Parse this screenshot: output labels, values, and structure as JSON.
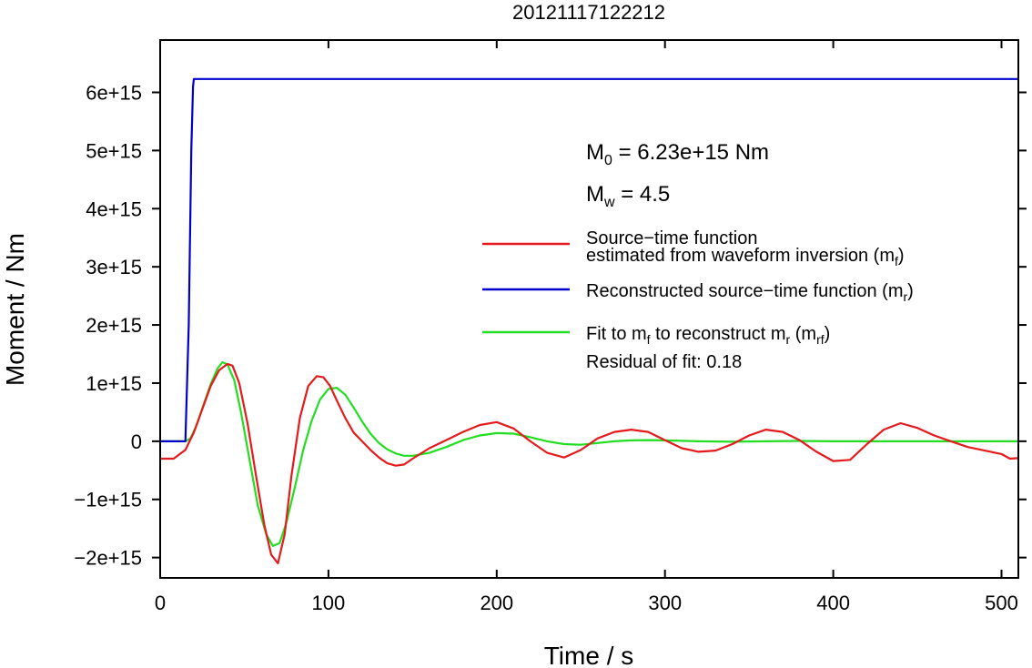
{
  "chart_data": {
    "type": "line",
    "title": "20121117122212",
    "xlabel": "Time / s",
    "ylabel": "Moment / Nm",
    "xlim": [
      0,
      510
    ],
    "ylim": [
      -2350000000000000.0,
      6900000000000000.0
    ],
    "x_ticks": [
      0,
      100,
      200,
      300,
      400,
      500
    ],
    "x_tick_labels": [
      "0",
      "100",
      "200",
      "300",
      "400",
      "500"
    ],
    "y_ticks": [
      -2000000000000000.0,
      -1000000000000000.0,
      0,
      1000000000000000.0,
      2000000000000000.0,
      3000000000000000.0,
      4000000000000000.0,
      5000000000000000.0,
      6000000000000000.0
    ],
    "y_tick_labels": [
      "−2e+15",
      "−1e+15",
      "0",
      "1e+15",
      "2e+15",
      "3e+15",
      "4e+15",
      "5e+15",
      "6e+15"
    ],
    "grid": false,
    "legend_position": "right",
    "annotations": {
      "m0": {
        "sym": "M",
        "sub": "0",
        "rest": " = 6.23e+15 Nm"
      },
      "mw": {
        "sym": "M",
        "sub": "w",
        "rest": " = 4.5"
      },
      "residual": "Residual of fit: 0.18"
    },
    "series": [
      {
        "key": "red",
        "color": "#e41a1c",
        "legend": [
          {
            "segments": [
              {
                "t": "Source−time function"
              }
            ]
          },
          {
            "segments": [
              {
                "t": "estimated from waveform inversion (m"
              },
              {
                "t": "f",
                "sub": true
              },
              {
                "t": ")"
              }
            ]
          }
        ],
        "x": [
          0,
          8,
          15,
          20,
          25,
          30,
          35,
          40,
          43,
          47,
          52,
          57,
          62,
          66,
          70,
          74,
          78,
          83,
          88,
          93,
          97,
          101,
          105,
          110,
          115,
          120,
          125,
          130,
          135,
          140,
          145,
          150,
          160,
          170,
          180,
          190,
          200,
          210,
          220,
          230,
          240,
          250,
          260,
          270,
          280,
          290,
          300,
          310,
          320,
          330,
          340,
          350,
          360,
          370,
          380,
          390,
          400,
          410,
          420,
          430,
          440,
          450,
          460,
          470,
          480,
          490,
          500,
          505,
          510
        ],
        "y": [
          -300000000000000.0,
          -300000000000000.0,
          -150000000000000.0,
          150000000000000.0,
          550000000000000.0,
          950000000000000.0,
          1220000000000000.0,
          1330000000000000.0,
          1300000000000000.0,
          1000000000000000.0,
          300000000000000.0,
          -600000000000000.0,
          -1450000000000000.0,
          -1950000000000000.0,
          -2100000000000000.0,
          -1600000000000000.0,
          -600000000000000.0,
          400000000000000.0,
          950000000000000.0,
          1120000000000000.0,
          1100000000000000.0,
          950000000000000.0,
          700000000000000.0,
          400000000000000.0,
          150000000000000.0,
          0.0,
          -150000000000000.0,
          -280000000000000.0,
          -380000000000000.0,
          -420000000000000.0,
          -400000000000000.0,
          -300000000000000.0,
          -120000000000000.0,
          20000000000000.0,
          160000000000000.0,
          280000000000000.0,
          330000000000000.0,
          220000000000000.0,
          0.0,
          -200000000000000.0,
          -280000000000000.0,
          -150000000000000.0,
          50000000000000.0,
          160000000000000.0,
          200000000000000.0,
          160000000000000.0,
          20000000000000.0,
          -120000000000000.0,
          -180000000000000.0,
          -160000000000000.0,
          -50000000000000.0,
          100000000000000.0,
          200000000000000.0,
          160000000000000.0,
          20000000000000.0,
          -180000000000000.0,
          -340000000000000.0,
          -320000000000000.0,
          -50000000000000.0,
          200000000000000.0,
          310000000000000.0,
          230000000000000.0,
          100000000000000.0,
          0.0,
          -100000000000000.0,
          -160000000000000.0,
          -220000000000000.0,
          -300000000000000.0,
          -290000000000000.0
        ]
      },
      {
        "key": "blue",
        "color": "#0000cc",
        "legend": [
          {
            "segments": [
              {
                "t": "Reconstructed source−time function (m"
              },
              {
                "t": "r",
                "sub": true
              },
              {
                "t": ")"
              }
            ]
          }
        ],
        "x": [
          0,
          15,
          17,
          18.5,
          19.5,
          20,
          510
        ],
        "y": [
          0,
          0,
          2000000000000000.0,
          5000000000000000.0,
          6100000000000000.0,
          6230000000000000.0,
          6230000000000000.0
        ]
      },
      {
        "key": "green",
        "color": "#22dd22",
        "legend": [
          {
            "segments": [
              {
                "t": "Fit to m"
              },
              {
                "t": "f",
                "sub": true
              },
              {
                "t": " to reconstruct m"
              },
              {
                "t": "r",
                "sub": true
              },
              {
                "t": " (m"
              },
              {
                "t": "rf",
                "sub": true
              },
              {
                "t": ")"
              }
            ]
          }
        ],
        "x": [
          0,
          15,
          18,
          22,
          26,
          30,
          34,
          37,
          40,
          44,
          48,
          53,
          58,
          63,
          67,
          71,
          75,
          80,
          85,
          90,
          95,
          100,
          105,
          110,
          115,
          120,
          125,
          130,
          135,
          140,
          145,
          150,
          160,
          170,
          180,
          190,
          200,
          210,
          220,
          230,
          240,
          250,
          260,
          270,
          280,
          290,
          300,
          320,
          340,
          360,
          380,
          400,
          420,
          440,
          460,
          480,
          500,
          510
        ],
        "y": [
          0,
          0,
          50000000000000.0,
          300000000000000.0,
          650000000000000.0,
          980000000000000.0,
          1250000000000000.0,
          1360000000000000.0,
          1320000000000000.0,
          1050000000000000.0,
          500000000000000.0,
          -300000000000000.0,
          -1100000000000000.0,
          -1600000000000000.0,
          -1800000000000000.0,
          -1750000000000000.0,
          -1400000000000000.0,
          -800000000000000.0,
          -150000000000000.0,
          350000000000000.0,
          720000000000000.0,
          900000000000000.0,
          920000000000000.0,
          800000000000000.0,
          580000000000000.0,
          340000000000000.0,
          130000000000000.0,
          -30000000000000.0,
          -140000000000000.0,
          -210000000000000.0,
          -250000000000000.0,
          -250000000000000.0,
          -200000000000000.0,
          -100000000000000.0,
          20000000000000.0,
          100000000000000.0,
          140000000000000.0,
          130000000000000.0,
          70000000000000.0,
          0.0,
          -50000000000000.0,
          -60000000000000.0,
          -30000000000000.0,
          0.0,
          15000000000000.0,
          20000000000000.0,
          15000000000000.0,
          0.0,
          -8000000000000.0,
          0.0,
          5000000000000.0,
          0.0,
          0.0,
          0.0,
          0.0,
          0.0,
          0.0,
          0.0
        ]
      }
    ]
  }
}
